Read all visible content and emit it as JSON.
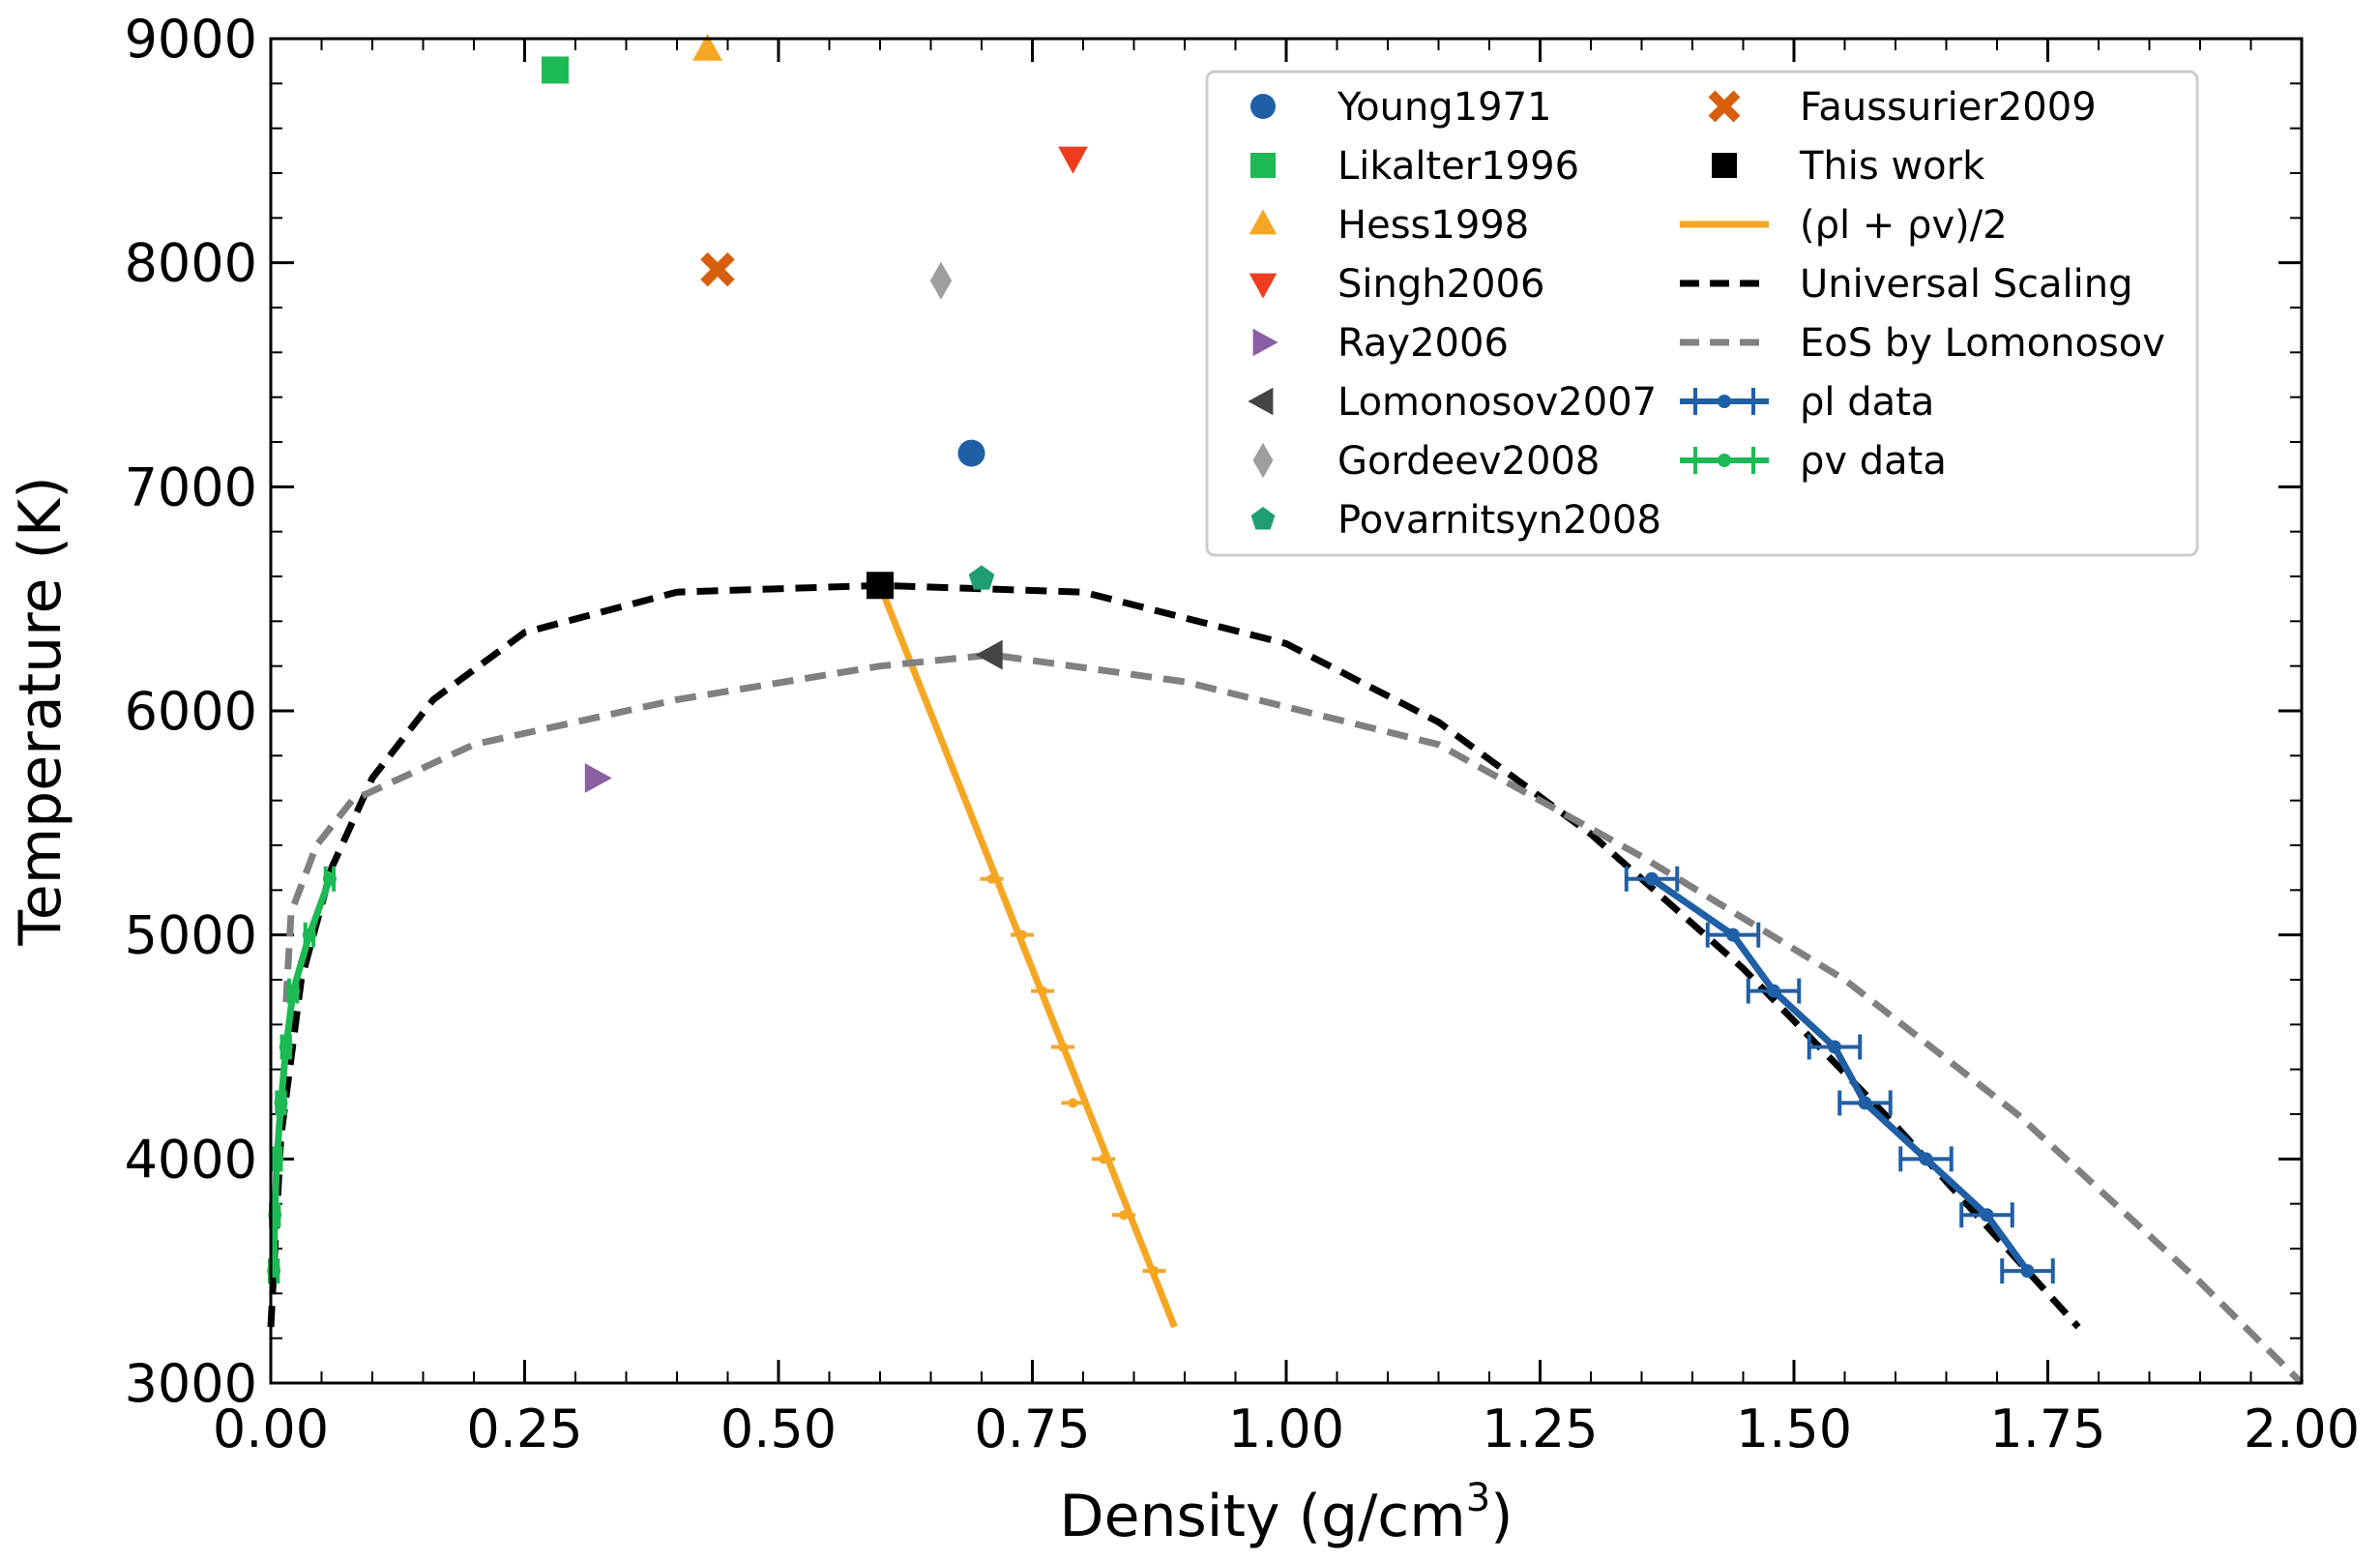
{
  "chart_data": {
    "type": "scatter",
    "title": "",
    "xlabel": "Density (g/cm",
    "xlabel_sup": "3",
    "xlabel_close": ")",
    "ylabel": "Temperature (K)",
    "xlim": [
      0.0,
      2.0
    ],
    "ylim": [
      3000,
      9000
    ],
    "x_ticks": [
      "0.00",
      "0.25",
      "0.50",
      "0.75",
      "1.00",
      "1.25",
      "1.50",
      "1.75",
      "2.00"
    ],
    "x_tick_values": [
      0.0,
      0.25,
      0.5,
      0.75,
      1.0,
      1.25,
      1.5,
      1.75,
      2.0
    ],
    "y_ticks": [
      "3000",
      "4000",
      "5000",
      "6000",
      "7000",
      "8000",
      "9000"
    ],
    "y_tick_values": [
      3000,
      4000,
      5000,
      6000,
      7000,
      8000,
      9000
    ],
    "grid": false,
    "legend_position": "top-right",
    "points": [
      {
        "name": "Young1971",
        "marker": "circle",
        "color": "#1f5fa6",
        "x": 0.69,
        "y": 7150
      },
      {
        "name": "Likalter1996",
        "marker": "square",
        "color": "#1db954",
        "x": 0.28,
        "y": 8860
      },
      {
        "name": "Hess1998",
        "marker": "triangle-up",
        "color": "#f5a623",
        "x": 0.43,
        "y": 8950
      },
      {
        "name": "Singh2006",
        "marker": "triangle-down",
        "color": "#f03c1e",
        "x": 0.79,
        "y": 8470
      },
      {
        "name": "Ray2006",
        "marker": "triangle-right",
        "color": "#8a5fa3",
        "x": 0.32,
        "y": 5700
      },
      {
        "name": "Lomonosov2007",
        "marker": "triangle-left",
        "color": "#444444",
        "x": 0.71,
        "y": 6250
      },
      {
        "name": "Gordeev2008",
        "marker": "diamond",
        "color": "#9e9e9e",
        "x": 0.66,
        "y": 7920
      },
      {
        "name": "Povarnitsyn2008",
        "marker": "pentagon",
        "color": "#1f9e74",
        "x": 0.7,
        "y": 6590
      },
      {
        "name": "Faussurier2009",
        "marker": "x",
        "color": "#d65f0e",
        "x": 0.44,
        "y": 7970
      },
      {
        "name": "This work",
        "marker": "square",
        "color": "#000000",
        "x": 0.6,
        "y": 6560
      }
    ],
    "series": [
      {
        "name": "(ρl + ρv)/2",
        "style": "solid",
        "color": "#f5a623",
        "x": [
          0.6,
          0.89
        ],
        "y": [
          6560,
          3250
        ],
        "markers": {
          "x": [
            0.71,
            0.74,
            0.76,
            0.78,
            0.79,
            0.82,
            0.84,
            0.87
          ],
          "y": [
            5250,
            5000,
            4750,
            4500,
            4250,
            4000,
            3750,
            3500
          ]
        }
      },
      {
        "name": "Universal Scaling",
        "style": "dashed",
        "color": "#000000",
        "x": [
          0.0,
          0.01,
          0.03,
          0.06,
          0.1,
          0.16,
          0.25,
          0.4,
          0.6,
          0.8,
          1.0,
          1.15,
          1.3,
          1.45,
          1.6,
          1.78
        ],
        "y": [
          3250,
          4100,
          4800,
          5300,
          5700,
          6050,
          6350,
          6530,
          6560,
          6530,
          6300,
          5950,
          5450,
          4850,
          4150,
          3250
        ]
      },
      {
        "name": "EoS by Lomonosov",
        "style": "dashed",
        "color": "#808080",
        "x": [
          0.015,
          0.02,
          0.045,
          0.08,
          0.2,
          0.4,
          0.6,
          0.71,
          0.9,
          1.15,
          1.35,
          1.55,
          1.72,
          1.9,
          2.0
        ],
        "y": [
          4700,
          5100,
          5400,
          5600,
          5850,
          6050,
          6200,
          6250,
          6130,
          5850,
          5350,
          4800,
          4200,
          3450,
          3000
        ]
      },
      {
        "name": "ρl data",
        "style": "solid",
        "color": "#1f5fa6",
        "x": [
          1.36,
          1.44,
          1.48,
          1.54,
          1.57,
          1.63,
          1.69,
          1.73
        ],
        "y": [
          5250,
          5000,
          4750,
          4500,
          4250,
          4000,
          3750,
          3500
        ],
        "xerr": 0.025
      },
      {
        "name": "ρv data",
        "style": "solid",
        "color": "#1db954",
        "x": [
          0.003,
          0.004,
          0.006,
          0.01,
          0.015,
          0.022,
          0.038,
          0.058
        ],
        "y": [
          3500,
          3750,
          4000,
          4250,
          4500,
          4750,
          5000,
          5250
        ],
        "xerr": 0.004
      }
    ],
    "legend": {
      "col1": [
        {
          "label": "Young1971",
          "marker": "circle",
          "color": "#1f5fa6"
        },
        {
          "label": "Likalter1996",
          "marker": "square",
          "color": "#1db954"
        },
        {
          "label": "Hess1998",
          "marker": "triangle-up",
          "color": "#f5a623"
        },
        {
          "label": "Singh2006",
          "marker": "triangle-down",
          "color": "#f03c1e"
        },
        {
          "label": "Ray2006",
          "marker": "triangle-right",
          "color": "#8a5fa3"
        },
        {
          "label": "Lomonosov2007",
          "marker": "triangle-left",
          "color": "#444444"
        },
        {
          "label": "Gordeev2008",
          "marker": "diamond",
          "color": "#9e9e9e"
        },
        {
          "label": "Povarnitsyn2008",
          "marker": "pentagon",
          "color": "#1f9e74"
        }
      ],
      "col2": [
        {
          "label": "Faussurier2009",
          "marker": "x",
          "color": "#d65f0e"
        },
        {
          "label": "This work",
          "marker": "square",
          "color": "#000000"
        },
        {
          "label": "(ρl + ρv)/2",
          "marker": "line-solid",
          "color": "#f5a623"
        },
        {
          "label": "Universal Scaling",
          "marker": "line-dashed",
          "color": "#000000"
        },
        {
          "label": "EoS by Lomonosov",
          "marker": "line-dashed",
          "color": "#808080"
        },
        {
          "label": "ρl data",
          "marker": "line-errorbar",
          "color": "#1f5fa6"
        },
        {
          "label": "ρv data",
          "marker": "line-errorbar",
          "color": "#1db954"
        }
      ]
    }
  }
}
